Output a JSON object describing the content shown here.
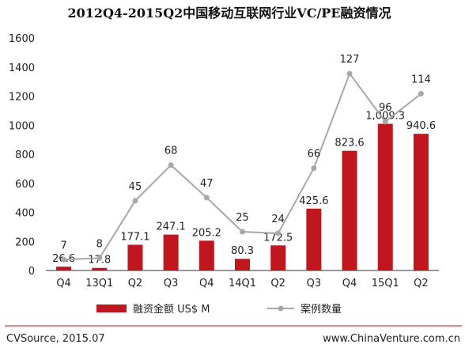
{
  "chart_data": {
    "title": "2012Q4-2015Q2中国移动互联网行业VC/PE融资情况",
    "type": "bar+line",
    "categories": [
      "Q4",
      "13Q1",
      "Q2",
      "Q3",
      "Q4",
      "14Q1",
      "Q2",
      "Q3",
      "Q4",
      "15Q1",
      "Q2"
    ],
    "ylim": [
      0,
      1600
    ],
    "yticks": [
      "0",
      "200",
      "400",
      "600",
      "800",
      "1000",
      "1200",
      "1400",
      "1600"
    ],
    "series": [
      {
        "name": "融资金额 US$ M",
        "type": "bar",
        "color": "#c0161f",
        "values": [
          26.6,
          17.8,
          177.1,
          247.1,
          205.2,
          80.3,
          172.5,
          425.6,
          823.6,
          1009.3,
          940.6
        ],
        "labels": [
          "26.6",
          "17.8",
          "177.1",
          "247.1",
          "205.2",
          "80.3",
          "172.5",
          "425.6",
          "823.6",
          "1,009.3",
          "940.6"
        ]
      },
      {
        "name": "案例数量",
        "type": "line",
        "color": "#a8a8a8",
        "values": [
          7,
          8,
          45,
          68,
          47,
          25,
          24,
          66,
          127,
          96,
          114
        ],
        "labels": [
          "7",
          "8",
          "45",
          "68",
          "47",
          "25",
          "24",
          "66",
          "127",
          "96",
          "114"
        ]
      }
    ],
    "secondary_axis": {
      "ylim": [
        0,
        150
      ],
      "printed": false
    },
    "grid": false,
    "legend_position": "bottom"
  },
  "footer": {
    "source": "CVSource, 2015.07",
    "website": "www.ChinaVenture.com.cn",
    "rule_color": "#c0161f"
  }
}
